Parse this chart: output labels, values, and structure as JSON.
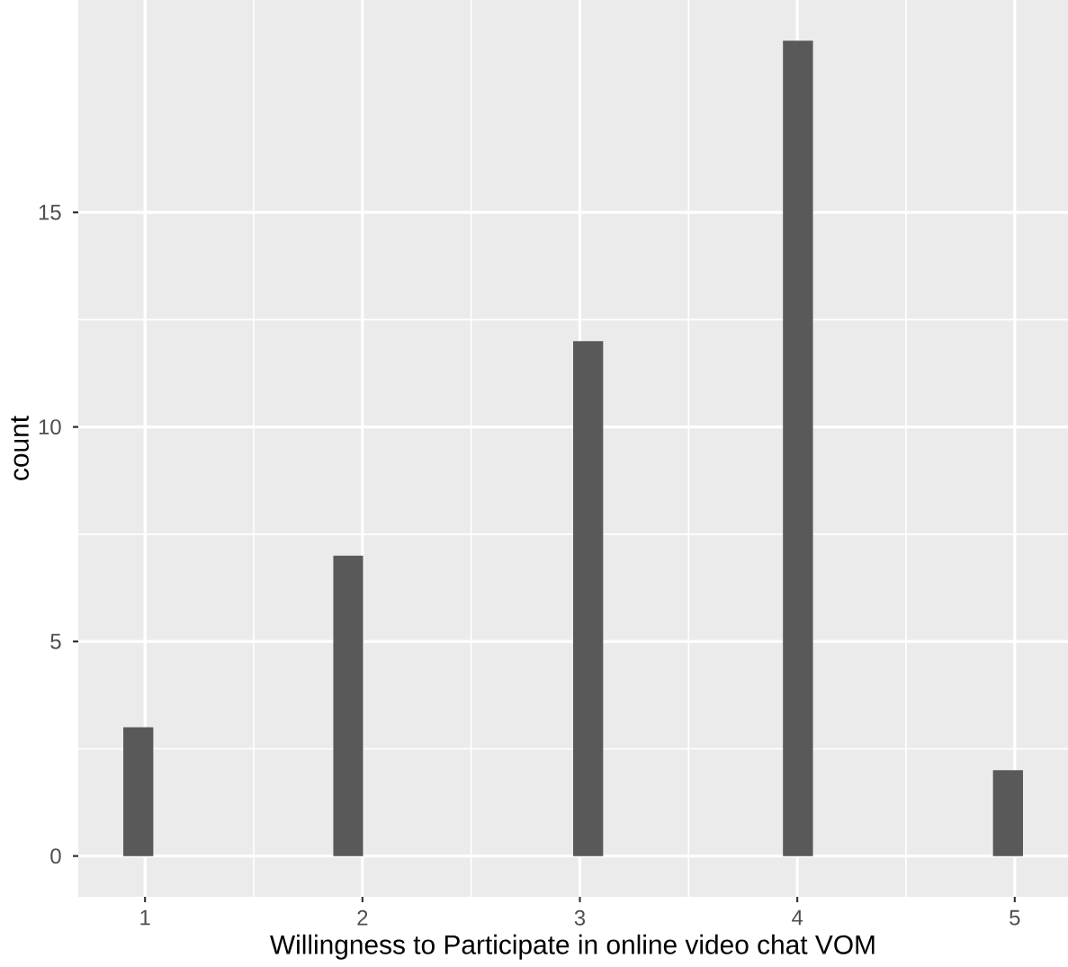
{
  "chart_data": {
    "type": "histogram",
    "xlabel": "Willingness to Participate in online video chat VOM",
    "ylabel": "count",
    "bins": [
      0.9,
      1.038,
      1.176,
      1.314,
      1.452,
      1.59,
      1.728,
      1.866,
      2.003,
      2.141,
      2.279,
      2.417,
      2.555,
      2.693,
      2.831,
      2.969,
      3.107,
      3.245,
      3.383,
      3.521,
      3.659,
      3.797,
      3.934,
      4.072,
      4.21,
      4.348,
      4.486,
      4.624,
      4.762,
      4.9,
      5.038
    ],
    "values": [
      3,
      0,
      0,
      0,
      0,
      0,
      0,
      7,
      0,
      0,
      0,
      0,
      0,
      0,
      0,
      12,
      0,
      0,
      0,
      0,
      0,
      0,
      19,
      0,
      0,
      0,
      0,
      0,
      0,
      2
    ],
    "color": "#595959",
    "xlim": [
      0.693,
      5.245
    ],
    "ylim": [
      -0.95,
      19.95
    ],
    "xticks": [
      1,
      2,
      3,
      4,
      5
    ],
    "yticks": [
      0,
      5,
      10,
      15
    ],
    "grid": true
  }
}
